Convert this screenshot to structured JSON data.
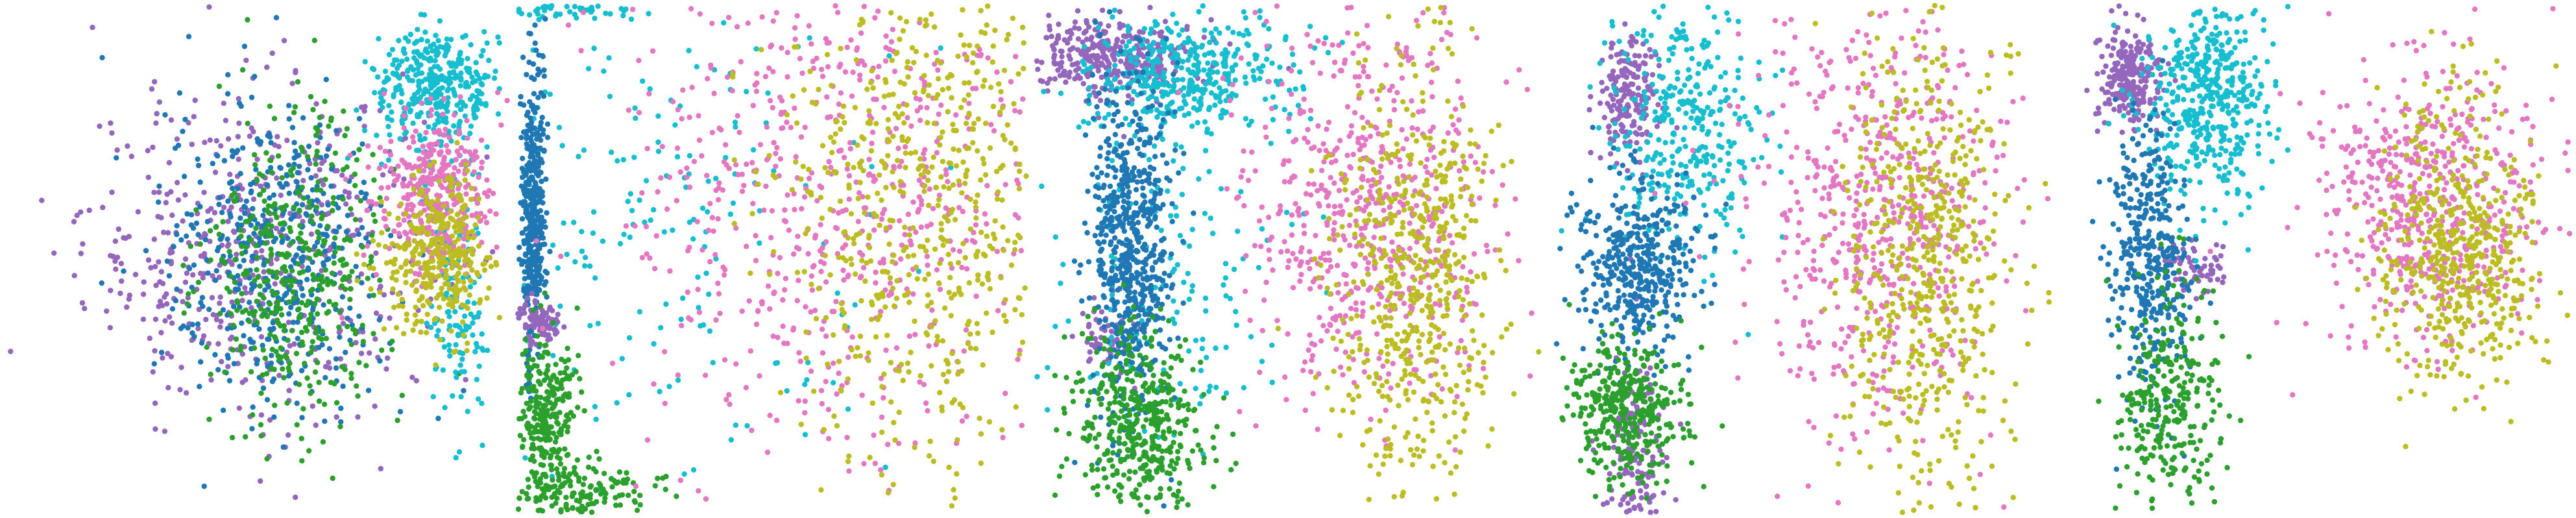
{
  "figure": {
    "title": ""
  },
  "palette": {
    "blue": "#1f77b4",
    "green": "#2ca02c",
    "purple": "#9467bd",
    "cyan": "#17becf",
    "pink": "#e377c2",
    "olive": "#bcbd22"
  },
  "chart_data": [
    {
      "type": "scatter",
      "title": "",
      "xlabel": "",
      "ylabel": "",
      "grid": false,
      "legend": "none",
      "axes_visible": false,
      "xlim": [
        0,
        100
      ],
      "ylim": [
        0,
        100
      ],
      "series": [
        {
          "color": "purple",
          "clusters": [
            {
              "cx": 50,
              "cy": 52,
              "sx": 17,
              "sy": 16,
              "n": 520
            }
          ]
        },
        {
          "color": "blue",
          "clusters": [
            {
              "cx": 54,
              "cy": 50,
              "sx": 11,
              "sy": 15,
              "n": 480
            }
          ]
        },
        {
          "color": "green",
          "clusters": [
            {
              "cx": 58,
              "cy": 48,
              "sx": 9,
              "sy": 15,
              "n": 420
            }
          ]
        },
        {
          "color": "cyan",
          "clusters": [
            {
              "cx": 86,
              "cy": 84,
              "sx": 6,
              "sy": 6,
              "n": 380
            },
            {
              "cx": 90,
              "cy": 40,
              "sx": 3,
              "sy": 12,
              "n": 120
            }
          ]
        },
        {
          "color": "pink",
          "clusters": [
            {
              "cx": 86,
              "cy": 63,
              "sx": 6,
              "sy": 8,
              "n": 380
            }
          ]
        },
        {
          "color": "olive",
          "clusters": [
            {
              "cx": 86,
              "cy": 50,
              "sx": 6,
              "sy": 8,
              "n": 340
            }
          ]
        }
      ]
    },
    {
      "type": "scatter",
      "title": "",
      "xlabel": "",
      "ylabel": "",
      "grid": false,
      "legend": "none",
      "axes_visible": false,
      "xlim": [
        0,
        100
      ],
      "ylim": [
        0,
        100
      ],
      "series": [
        {
          "color": "cyan",
          "clusters": [
            {
              "cx": 25,
              "cy": 60,
              "sx": 22,
              "sy": 30,
              "n": 220
            },
            {
              "cx": 10,
              "cy": 99,
              "sx": 10,
              "sy": 1,
              "n": 60
            }
          ]
        },
        {
          "color": "blue",
          "clusters": [
            {
              "cx": 3,
              "cy": 60,
              "sx": 1.2,
              "sy": 14,
              "n": 420
            }
          ]
        },
        {
          "color": "purple",
          "clusters": [
            {
              "cx": 4,
              "cy": 38,
              "sx": 2,
              "sy": 2,
              "n": 90
            }
          ]
        },
        {
          "color": "green",
          "clusters": [
            {
              "cx": 5,
              "cy": 20,
              "sx": 3,
              "sy": 8,
              "n": 260
            },
            {
              "cx": 12,
              "cy": 4,
              "sx": 7,
              "sy": 3,
              "n": 160
            }
          ]
        },
        {
          "color": "pink",
          "clusters": [
            {
              "cx": 62,
              "cy": 62,
              "sx": 22,
              "sy": 26,
              "n": 700
            }
          ]
        },
        {
          "color": "olive",
          "clusters": [
            {
              "cx": 80,
              "cy": 62,
              "sx": 15,
              "sy": 26,
              "n": 640
            }
          ]
        }
      ]
    },
    {
      "type": "scatter",
      "title": "",
      "xlabel": "",
      "ylabel": "",
      "grid": false,
      "legend": "none",
      "axes_visible": false,
      "xlim": [
        0,
        100
      ],
      "ylim": [
        0,
        100
      ],
      "series": [
        {
          "color": "purple",
          "clusters": [
            {
              "cx": 14,
              "cy": 90,
              "sx": 8,
              "sy": 4,
              "n": 340
            },
            {
              "cx": 14,
              "cy": 35,
              "sx": 3,
              "sy": 3,
              "n": 60
            }
          ]
        },
        {
          "color": "cyan",
          "clusters": [
            {
              "cx": 30,
              "cy": 86,
              "sx": 10,
              "sy": 6,
              "n": 400
            },
            {
              "cx": 25,
              "cy": 45,
              "sx": 12,
              "sy": 16,
              "n": 150
            }
          ]
        },
        {
          "color": "blue",
          "clusters": [
            {
              "cx": 18,
              "cy": 52,
              "sx": 4,
              "sy": 18,
              "n": 640
            }
          ]
        },
        {
          "color": "green",
          "clusters": [
            {
              "cx": 20,
              "cy": 17,
              "sx": 6,
              "sy": 9,
              "n": 460
            }
          ]
        },
        {
          "color": "pink",
          "clusters": [
            {
              "cx": 66,
              "cy": 60,
              "sx": 12,
              "sy": 20,
              "n": 620
            }
          ]
        },
        {
          "color": "olive",
          "clusters": [
            {
              "cx": 74,
              "cy": 46,
              "sx": 8,
              "sy": 22,
              "n": 560
            }
          ]
        }
      ]
    },
    {
      "type": "scatter",
      "title": "",
      "xlabel": "",
      "ylabel": "",
      "grid": false,
      "legend": "none",
      "axes_visible": false,
      "xlim": [
        0,
        100
      ],
      "ylim": [
        0,
        100
      ],
      "series": [
        {
          "color": "purple",
          "clusters": [
            {
              "cx": 14,
              "cy": 82,
              "sx": 3,
              "sy": 6,
              "n": 180
            },
            {
              "cx": 16,
              "cy": 12,
              "sx": 3,
              "sy": 10,
              "n": 160
            }
          ]
        },
        {
          "color": "cyan",
          "clusters": [
            {
              "cx": 26,
              "cy": 76,
              "sx": 8,
              "sy": 14,
              "n": 360
            }
          ]
        },
        {
          "color": "blue",
          "clusters": [
            {
              "cx": 16,
              "cy": 48,
              "sx": 6,
              "sy": 9,
              "n": 420
            }
          ]
        },
        {
          "color": "green",
          "clusters": [
            {
              "cx": 14,
              "cy": 20,
              "sx": 6,
              "sy": 7,
              "n": 380
            }
          ]
        },
        {
          "color": "pink",
          "clusters": [
            {
              "cx": 64,
              "cy": 58,
              "sx": 12,
              "sy": 22,
              "n": 620
            }
          ]
        },
        {
          "color": "olive",
          "clusters": [
            {
              "cx": 74,
              "cy": 48,
              "sx": 8,
              "sy": 24,
              "n": 560
            }
          ]
        }
      ]
    },
    {
      "type": "scatter",
      "title": "",
      "xlabel": "",
      "ylabel": "",
      "grid": false,
      "legend": "none",
      "axes_visible": false,
      "xlim": [
        0,
        100
      ],
      "ylim": [
        0,
        100
      ],
      "series": [
        {
          "color": "purple",
          "clusters": [
            {
              "cx": 12,
              "cy": 86,
              "sx": 3,
              "sy": 5,
              "n": 260
            },
            {
              "cx": 26,
              "cy": 48,
              "sx": 3,
              "sy": 3,
              "n": 60
            }
          ]
        },
        {
          "color": "cyan",
          "clusters": [
            {
              "cx": 28,
              "cy": 82,
              "sx": 6,
              "sy": 10,
              "n": 480
            }
          ]
        },
        {
          "color": "blue",
          "clusters": [
            {
              "cx": 16,
              "cy": 50,
              "sx": 4,
              "sy": 14,
              "n": 380
            }
          ]
        },
        {
          "color": "green",
          "clusters": [
            {
              "cx": 20,
              "cy": 22,
              "sx": 5,
              "sy": 12,
              "n": 300
            }
          ]
        },
        {
          "color": "pink",
          "clusters": [
            {
              "cx": 72,
              "cy": 60,
              "sx": 11,
              "sy": 14,
              "n": 560
            }
          ]
        },
        {
          "color": "olive",
          "clusters": [
            {
              "cx": 78,
              "cy": 52,
              "sx": 8,
              "sy": 14,
              "n": 520
            }
          ]
        }
      ]
    }
  ]
}
